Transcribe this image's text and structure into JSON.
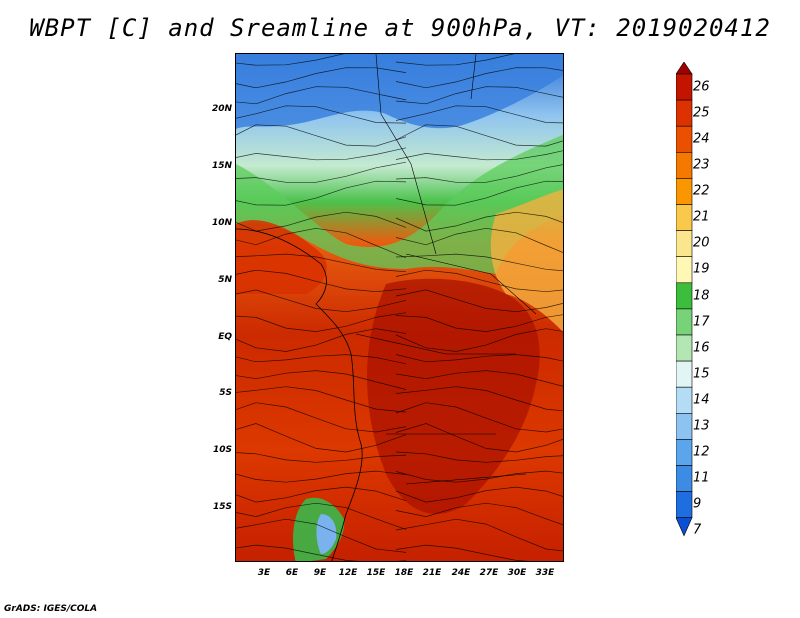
{
  "title": "WBPT [C] and Sreamline at 900hPa, VT: 2019020412",
  "credit": "GrADS: IGES/COLA",
  "map": {
    "lat_labels": [
      "20N",
      "15N",
      "10N",
      "5N",
      "EQ",
      "5S",
      "10S",
      "15S"
    ],
    "lon_labels": [
      "3E",
      "6E",
      "9E",
      "12E",
      "15E",
      "18E",
      "21E",
      "24E",
      "27E",
      "30E",
      "33E"
    ],
    "region": "Africa (equatorial)"
  },
  "colorbar": {
    "labels": [
      "26",
      "25",
      "24",
      "23",
      "22",
      "21",
      "20",
      "19",
      "18",
      "17",
      "16",
      "15",
      "14",
      "13",
      "12",
      "11",
      "9",
      "7"
    ],
    "colors": [
      "#a00000",
      "#c31400",
      "#dc3200",
      "#eb5000",
      "#f57800",
      "#fa9600",
      "#fac84b",
      "#fae68c",
      "#fff8b4",
      "#3cbe3c",
      "#78d278",
      "#b4e6b4",
      "#e1f5f5",
      "#b4dcf5",
      "#8cc3f0",
      "#5aa5eb",
      "#3c8ce6",
      "#1e6ee1",
      "#0a50d2"
    ]
  }
}
